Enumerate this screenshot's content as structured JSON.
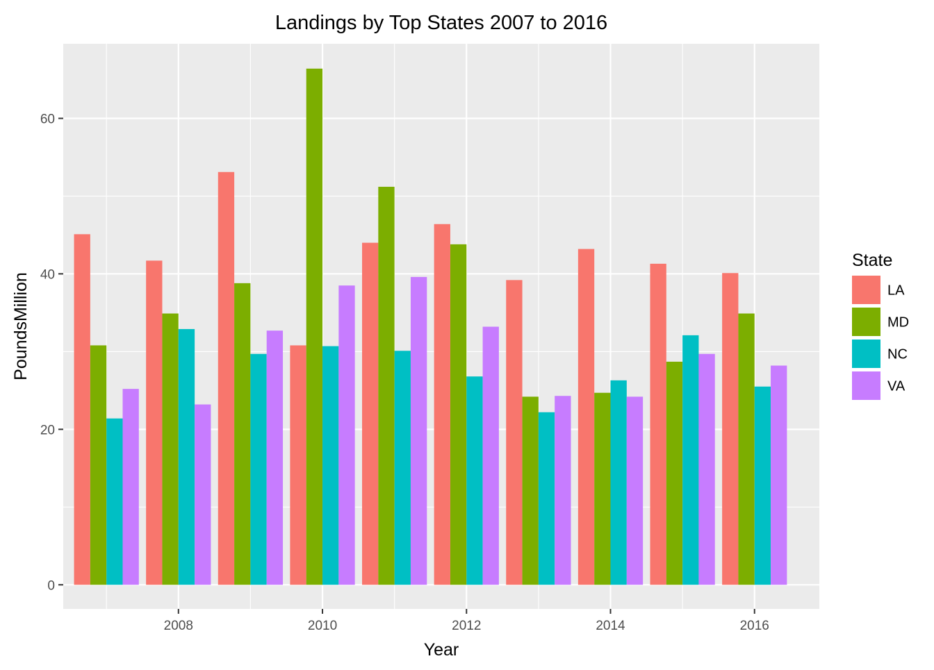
{
  "chart_data": {
    "type": "bar",
    "title": "Landings by Top States 2007 to 2016",
    "xlabel": "Year",
    "ylabel": "PoundsMillion",
    "categories": [
      2007,
      2008,
      2009,
      2010,
      2011,
      2012,
      2013,
      2014,
      2015,
      2016
    ],
    "x_ticks": [
      "2008",
      "2010",
      "2012",
      "2014",
      "2016"
    ],
    "y_ticks": [
      "0",
      "20",
      "40",
      "60"
    ],
    "ylim": [
      -3.1,
      69.6
    ],
    "xlim": [
      2006.4,
      2016.9
    ],
    "grid": true,
    "legend": {
      "title": "State",
      "position": "right"
    },
    "series": [
      {
        "name": "LA",
        "color": "#F8766D",
        "values": [
          45.1,
          41.7,
          53.1,
          30.8,
          44.0,
          46.4,
          39.2,
          43.2,
          41.3,
          40.1
        ]
      },
      {
        "name": "MD",
        "color": "#7CAE00",
        "values": [
          30.8,
          34.9,
          38.8,
          66.4,
          51.2,
          43.8,
          24.2,
          24.7,
          28.7,
          34.9
        ]
      },
      {
        "name": "NC",
        "color": "#00BFC4",
        "values": [
          21.4,
          32.9,
          29.7,
          30.7,
          30.1,
          26.8,
          22.2,
          26.3,
          32.1,
          25.5
        ]
      },
      {
        "name": "VA",
        "color": "#C77CFF",
        "values": [
          25.2,
          23.2,
          32.7,
          38.5,
          39.6,
          33.2,
          24.3,
          24.2,
          29.7,
          28.2
        ]
      }
    ]
  }
}
